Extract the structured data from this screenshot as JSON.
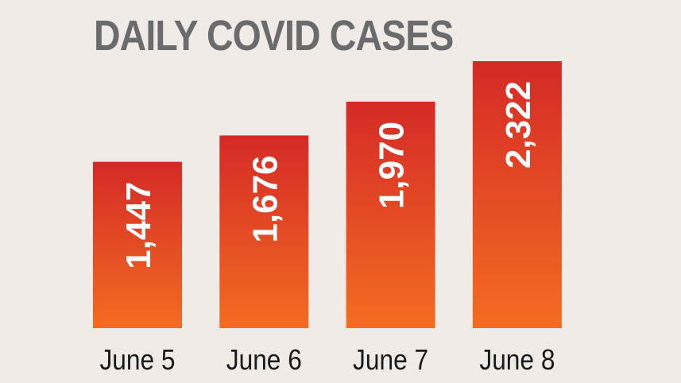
{
  "chart_data": {
    "type": "bar",
    "title": "DAILY COVID CASES",
    "categories": [
      "June 5",
      "June 6",
      "June 7",
      "June 8"
    ],
    "values": [
      1447,
      1676,
      1970,
      2322
    ],
    "value_labels": [
      "1,447",
      "1,676",
      "1,970",
      "2,322"
    ],
    "xlabel": "",
    "ylabel": "",
    "ylim": [
      0,
      2322
    ],
    "grid": false,
    "colors": {
      "bar_top": "#d42a27",
      "bar_bottom": "#f46c21",
      "background": "#f0ebe7",
      "title": "#6b6b6d"
    }
  }
}
